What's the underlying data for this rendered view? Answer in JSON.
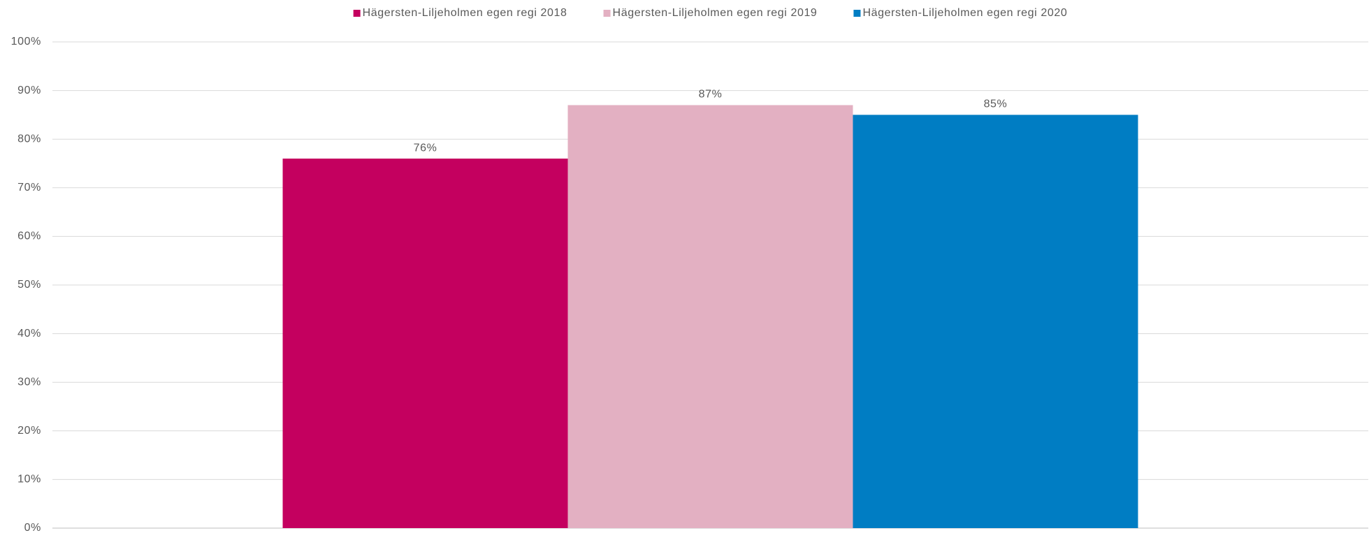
{
  "chart_data": {
    "type": "bar",
    "categories": [
      null
    ],
    "series": [
      {
        "name": "Hägersten-Liljeholmen egen regi 2018",
        "color": "#c4005f",
        "values": [
          76
        ],
        "value_labels": [
          "76%"
        ]
      },
      {
        "name": "Hägersten-Liljeholmen egen regi 2019",
        "color": "#e3b0c2",
        "values": [
          87
        ],
        "value_labels": [
          "87%"
        ]
      },
      {
        "name": "Hägersten-Liljeholmen egen regi 2020",
        "color": "#007dc3",
        "values": [
          85
        ],
        "value_labels": [
          "85%"
        ]
      }
    ],
    "ylim": [
      0,
      100
    ],
    "yticks": [
      {
        "value": 0,
        "label": "0%"
      },
      {
        "value": 10,
        "label": "10%"
      },
      {
        "value": 20,
        "label": "20%"
      },
      {
        "value": 30,
        "label": "30%"
      },
      {
        "value": 40,
        "label": "40%"
      },
      {
        "value": 50,
        "label": "50%"
      },
      {
        "value": 60,
        "label": "60%"
      },
      {
        "value": 70,
        "label": "70%"
      },
      {
        "value": 80,
        "label": "80%"
      },
      {
        "value": 90,
        "label": "90%"
      },
      {
        "value": 100,
        "label": "100%"
      }
    ],
    "grid": true,
    "legend": "top"
  }
}
